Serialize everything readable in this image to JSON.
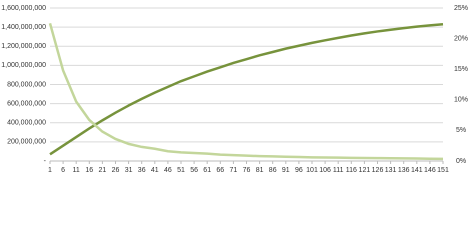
{
  "chart_data": {
    "type": "line",
    "x": [
      1,
      6,
      11,
      16,
      21,
      26,
      31,
      36,
      41,
      46,
      51,
      56,
      61,
      66,
      71,
      76,
      81,
      86,
      91,
      96,
      101,
      106,
      111,
      116,
      121,
      126,
      131,
      136,
      141,
      146,
      151
    ],
    "xlim": [
      1,
      151
    ],
    "xticks": [
      1,
      6,
      11,
      16,
      21,
      26,
      31,
      36,
      41,
      46,
      51,
      56,
      61,
      66,
      71,
      76,
      81,
      86,
      91,
      96,
      101,
      106,
      111,
      116,
      121,
      126,
      131,
      136,
      141,
      146,
      151
    ],
    "ylim": [
      0,
      1600000000
    ],
    "yticks": [
      {
        "value": 0,
        "label": "-"
      },
      {
        "value": 200000000,
        "label": "200,000,000"
      },
      {
        "value": 400000000,
        "label": "400,000,000"
      },
      {
        "value": 600000000,
        "label": "600,000,000"
      },
      {
        "value": 800000000,
        "label": "800,000,000"
      },
      {
        "value": 1000000000,
        "label": "1,000,000,000"
      },
      {
        "value": 1200000000,
        "label": "1,200,000,000"
      },
      {
        "value": 1400000000,
        "label": "1,400,000,000"
      },
      {
        "value": 1600000000,
        "label": "1,600,000,000"
      }
    ],
    "y2lim": [
      0,
      25
    ],
    "y2ticks": [
      {
        "value": 0,
        "label": "0%"
      },
      {
        "value": 5,
        "label": "5%"
      },
      {
        "value": 10,
        "label": "10%"
      },
      {
        "value": 15,
        "label": "15%"
      },
      {
        "value": 20,
        "label": "20%"
      },
      {
        "value": 25,
        "label": "25%"
      }
    ],
    "grid": true,
    "series": [
      {
        "color": "#77933c",
        "values": [
          70000000,
          160000000,
          250000000,
          340000000,
          425000000,
          505000000,
          580000000,
          650000000,
          715000000,
          775000000,
          835000000,
          885000000,
          935000000,
          980000000,
          1025000000,
          1065000000,
          1105000000,
          1140000000,
          1175000000,
          1205000000,
          1235000000,
          1262000000,
          1288000000,
          1312000000,
          1335000000,
          1355000000,
          1373000000,
          1390000000,
          1405000000,
          1418000000,
          1430000000
        ]
      },
      {
        "color": "#c3d69b",
        "axis": "y2",
        "values": [
          22.5,
          14.8,
          9.7,
          6.7,
          4.8,
          3.6,
          2.8,
          2.3,
          2.0,
          1.6,
          1.4,
          1.3,
          1.2,
          1.05,
          0.95,
          0.87,
          0.8,
          0.75,
          0.7,
          0.65,
          0.6,
          0.57,
          0.55,
          0.52,
          0.5,
          0.47,
          0.45,
          0.42,
          0.4,
          0.37,
          0.35
        ]
      }
    ]
  }
}
